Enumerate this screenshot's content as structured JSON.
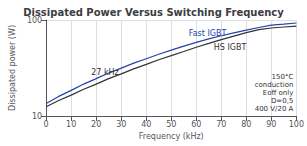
{
  "chart_data": {
    "type": "line",
    "title": "Dissipated Power Versus Switching Frequency",
    "xlabel": "Frequency (kHz)",
    "ylabel": "Dissipated power (W)",
    "log": "y",
    "grid": true,
    "x": [
      0,
      5,
      10,
      15,
      20,
      25,
      30,
      35,
      40,
      45,
      50,
      55,
      60,
      65,
      70,
      75,
      80,
      85,
      90,
      95,
      100
    ],
    "series": [
      {
        "name": "Fast IGBT",
        "color": "#2244aa",
        "values": [
          13.5,
          16.0,
          18.5,
          21.5,
          24.5,
          28.0,
          31.5,
          35.5,
          39.5,
          44.0,
          48.5,
          53.5,
          58.5,
          63.5,
          68.5,
          73.5,
          78.5,
          83.5,
          88.5,
          90.5,
          93.0
        ]
      },
      {
        "name": "HS IGBT",
        "color": "#333333",
        "values": [
          12.5,
          14.5,
          16.5,
          19.0,
          21.5,
          24.5,
          27.5,
          31.0,
          34.5,
          38.5,
          42.5,
          47.0,
          52.0,
          57.0,
          62.5,
          68.0,
          74.0,
          79.5,
          82.5,
          84.5,
          86.5
        ]
      }
    ],
    "xlim": [
      0,
      100
    ],
    "xticks": [
      0,
      10,
      20,
      30,
      40,
      50,
      60,
      70,
      80,
      90,
      100
    ],
    "ylim": [
      10,
      100
    ],
    "yticks": [
      10,
      100
    ],
    "annotations": [
      {
        "text": "27 kHz",
        "x": 18,
        "y": 26
      },
      {
        "text": "Fast IGBT",
        "x": 57,
        "y": 65
      },
      {
        "text": "HS IGBT",
        "x": 67,
        "y": 47
      },
      {
        "text": "150°C\nconduction\nEoff only\nD=0,5\n400 V/20 A"
      }
    ]
  }
}
